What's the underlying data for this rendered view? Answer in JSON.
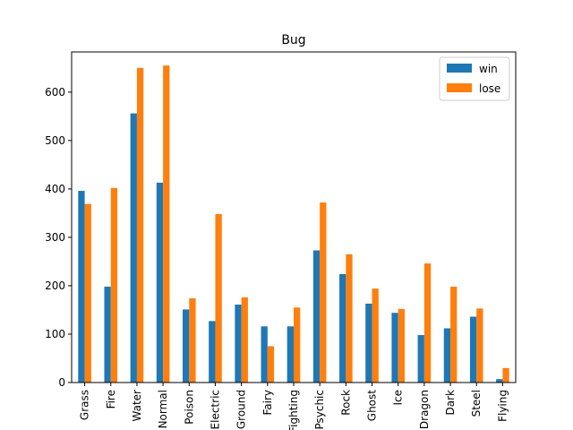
{
  "chart_data": {
    "type": "bar",
    "title": "Bug",
    "xlabel": "",
    "ylabel": "",
    "ylim": [
      0,
      683
    ],
    "yticks": [
      0,
      100,
      200,
      300,
      400,
      500,
      600
    ],
    "categories": [
      "Grass",
      "Fire",
      "Water",
      "Normal",
      "Poison",
      "Electric",
      "Ground",
      "Fairy",
      "Fighting",
      "Psychic",
      "Rock",
      "Ghost",
      "Ice",
      "Dragon",
      "Dark",
      "Steel",
      "Flying"
    ],
    "series": [
      {
        "name": "win",
        "color": "#1f77b4",
        "values": [
          396,
          198,
          556,
          413,
          151,
          127,
          161,
          116,
          116,
          273,
          224,
          163,
          144,
          98,
          112,
          136,
          7
        ]
      },
      {
        "name": "lose",
        "color": "#ff7f0e",
        "values": [
          369,
          402,
          650,
          655,
          174,
          348,
          176,
          75,
          155,
          372,
          265,
          194,
          152,
          246,
          198,
          153,
          30
        ]
      }
    ],
    "grid": false,
    "legend_position": "top-right"
  }
}
